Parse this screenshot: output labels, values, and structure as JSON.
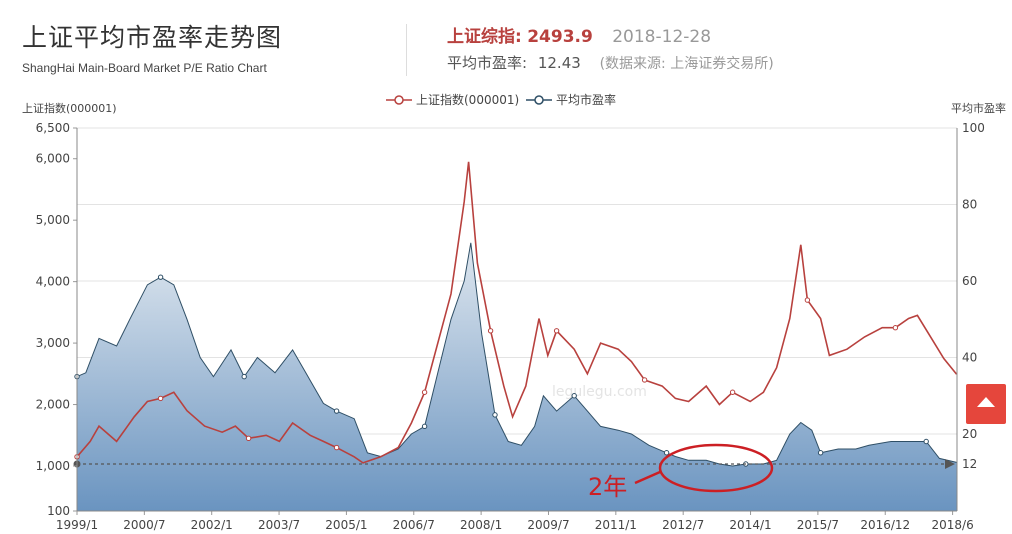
{
  "header": {
    "title": "上证平均市盈率走势图",
    "subtitle": "ShangHai Main-Board Market P/E Ratio Chart",
    "index_label": "上证综指:",
    "index_value": "2493.9",
    "date": "2018-12-28",
    "pe_label": "平均市盈率:",
    "pe_value": "12.43",
    "source": "(数据来源: 上海证券交易所)"
  },
  "colors": {
    "index_line": "#b8413e",
    "pe_line": "#2f4f66",
    "pe_fill_top": "#dfe7ef",
    "pe_fill_bottom": "#6a94c0",
    "annotation": "#cc1f24"
  },
  "chart_data": {
    "type": "area",
    "left_axis_label": "上证指数(000001)",
    "right_axis_label": "平均市盈率",
    "left_ticks": [
      "100",
      "1,000",
      "2,000",
      "3,000",
      "4,000",
      "5,000",
      "6,000",
      "6,500"
    ],
    "right_ticks": [
      "12",
      "20",
      "40",
      "60",
      "80",
      "100"
    ],
    "x_tick_labels": [
      "1999/1",
      "2000/7",
      "2002/1",
      "2003/7",
      "2005/1",
      "2006/7",
      "2008/1",
      "2009/7",
      "2011/1",
      "2012/7",
      "2014/1",
      "2015/7",
      "2016/12",
      "2018/6"
    ],
    "left_ylim": [
      100,
      6500
    ],
    "right_ylim": [
      0,
      100
    ],
    "x_range": [
      1999.0,
      2019.0
    ],
    "legend": [
      "上证指数(000001)",
      "平均市盈率"
    ],
    "legend_position": "top-center",
    "watermark": "legulegu.com",
    "reference_line_pe": 12,
    "annotation_text": "2年",
    "series": [
      {
        "name": "上证指数(000001)",
        "x": [
          1999.0,
          1999.3,
          1999.5,
          1999.9,
          2000.3,
          2000.6,
          2000.9,
          2001.2,
          2001.5,
          2001.9,
          2002.3,
          2002.6,
          2002.9,
          2003.3,
          2003.6,
          2003.9,
          2004.3,
          2004.6,
          2004.9,
          2005.3,
          2005.5,
          2005.9,
          2006.3,
          2006.6,
          2006.9,
          2007.2,
          2007.5,
          2007.8,
          2007.9,
          2008.1,
          2008.4,
          2008.7,
          2008.9,
          2009.2,
          2009.5,
          2009.7,
          2009.9,
          2010.3,
          2010.6,
          2010.9,
          2011.3,
          2011.6,
          2011.9,
          2012.3,
          2012.6,
          2012.9,
          2013.3,
          2013.6,
          2013.9,
          2014.3,
          2014.6,
          2014.9,
          2015.2,
          2015.45,
          2015.6,
          2015.9,
          2016.1,
          2016.5,
          2016.9,
          2017.3,
          2017.6,
          2017.9,
          2018.1,
          2018.4,
          2018.7,
          2018.99
        ],
        "values": [
          1150,
          1400,
          1650,
          1400,
          1800,
          2050,
          2100,
          2200,
          1900,
          1650,
          1550,
          1650,
          1450,
          1500,
          1400,
          1700,
          1500,
          1400,
          1300,
          1150,
          1050,
          1150,
          1300,
          1700,
          2200,
          3000,
          3800,
          5300,
          5950,
          4300,
          3200,
          2300,
          1800,
          2300,
          3400,
          2800,
          3200,
          2900,
          2500,
          3000,
          2900,
          2700,
          2400,
          2300,
          2100,
          2050,
          2300,
          2000,
          2200,
          2050,
          2200,
          2600,
          3400,
          4600,
          3700,
          3400,
          2800,
          2900,
          3100,
          3250,
          3250,
          3400,
          3450,
          3100,
          2750,
          2494
        ]
      },
      {
        "name": "平均市盈率",
        "x": [
          1999.0,
          1999.2,
          1999.5,
          1999.9,
          2000.2,
          2000.6,
          2000.9,
          2001.2,
          2001.5,
          2001.8,
          2002.1,
          2002.5,
          2002.8,
          2003.1,
          2003.5,
          2003.9,
          2004.2,
          2004.6,
          2004.9,
          2005.3,
          2005.6,
          2005.9,
          2006.3,
          2006.6,
          2006.9,
          2007.2,
          2007.5,
          2007.8,
          2007.95,
          2008.2,
          2008.5,
          2008.8,
          2009.1,
          2009.4,
          2009.6,
          2009.9,
          2010.3,
          2010.6,
          2010.9,
          2011.3,
          2011.6,
          2012.0,
          2012.4,
          2012.6,
          2012.9,
          2013.3,
          2013.6,
          2013.9,
          2014.2,
          2014.6,
          2014.9,
          2015.2,
          2015.45,
          2015.7,
          2015.9,
          2016.3,
          2016.7,
          2017.0,
          2017.5,
          2017.9,
          2018.3,
          2018.6,
          2018.99
        ],
        "values": [
          35,
          36,
          45,
          43,
          50,
          59,
          61,
          59,
          50,
          40,
          35,
          42,
          35,
          40,
          36,
          42,
          36,
          28,
          26,
          24,
          15,
          14,
          16,
          20,
          22,
          36,
          50,
          60,
          70,
          46,
          25,
          18,
          17,
          22,
          30,
          26,
          30,
          26,
          22,
          21,
          20,
          17,
          15,
          14,
          13,
          13,
          12,
          11.5,
          12,
          12,
          13,
          20,
          23,
          21,
          15,
          16,
          16,
          17,
          18,
          18,
          18,
          13.5,
          12.43
        ]
      }
    ]
  }
}
